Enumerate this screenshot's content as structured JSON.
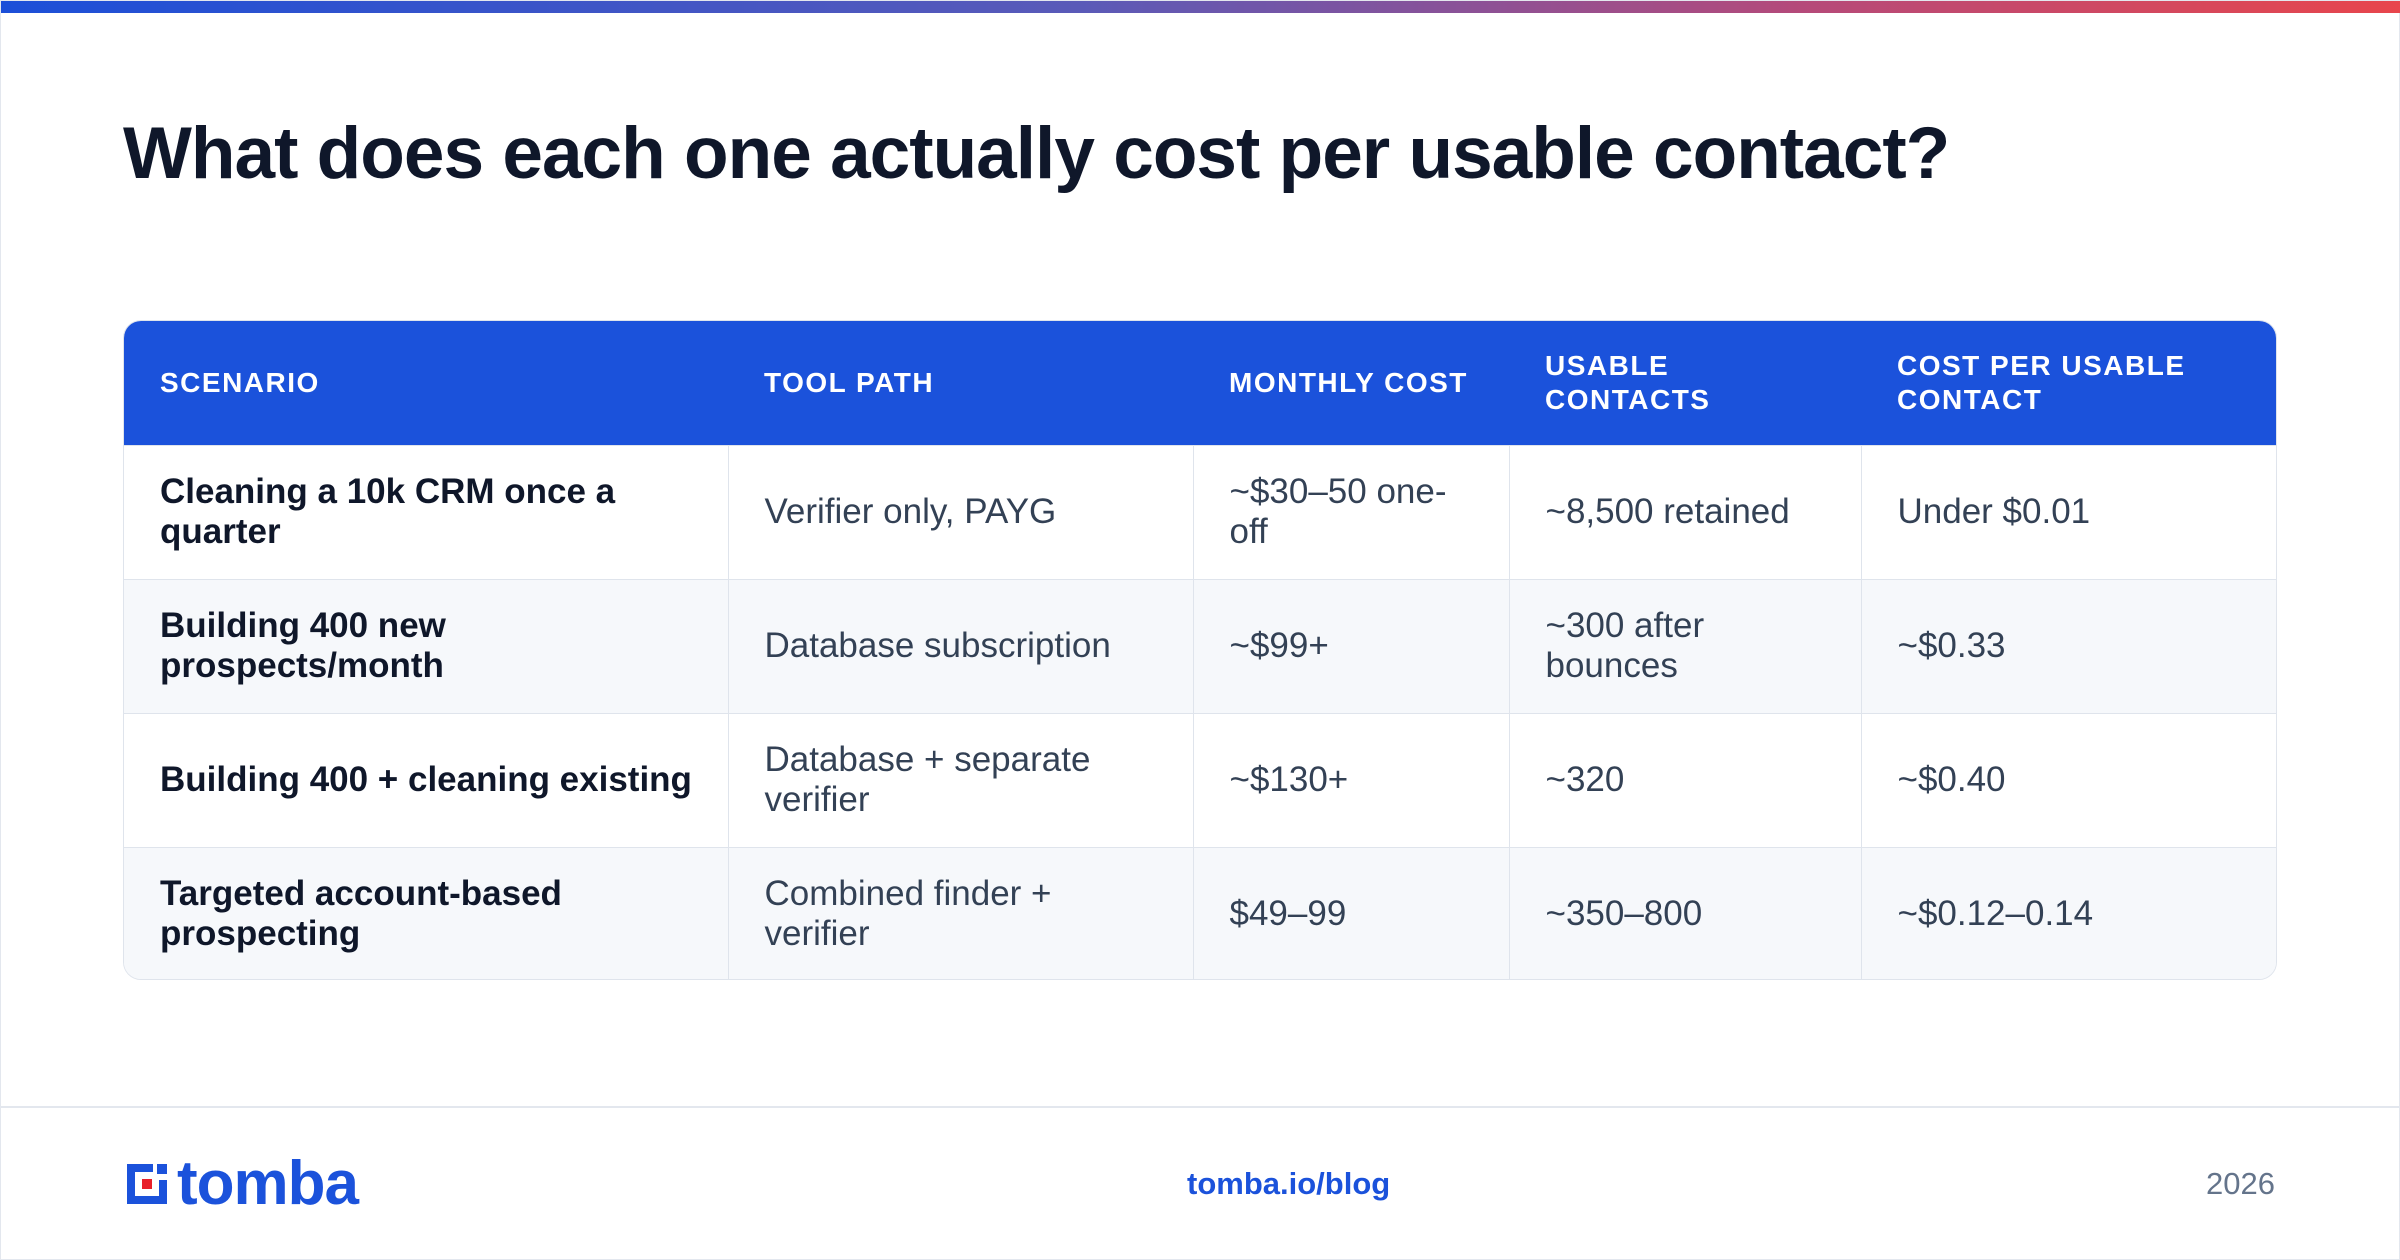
{
  "header": {
    "title": "What does each one actually cost per usable contact?"
  },
  "table": {
    "columns": [
      "SCENARIO",
      "TOOL PATH",
      "MONTHLY COST",
      "USABLE CONTACTS",
      "COST PER USABLE CONTACT"
    ],
    "rows": [
      [
        "Cleaning a 10k CRM once a quarter",
        "Verifier only, PAYG",
        "~$30–50 one-off",
        "~8,500 retained",
        "Under $0.01"
      ],
      [
        "Building 400 new prospects/month",
        "Database subscription",
        "~$99+",
        "~300 after bounces",
        "~$0.33"
      ],
      [
        "Building 400 + cleaning existing",
        "Database + separate verifier",
        "~$130+",
        "~320",
        "~$0.40"
      ],
      [
        "Targeted account-based prospecting",
        "Combined finder + verifier",
        "$49–99",
        "~350–800",
        "~$0.12–0.14"
      ]
    ]
  },
  "footer": {
    "brand": "tomba",
    "logo_icon": "tomba-logo-icon",
    "link": "tomba.io/blog",
    "year": "2026"
  },
  "colors": {
    "accent": "#1b52db",
    "title": "#0f172a",
    "text": "#334155",
    "muted": "#64748b",
    "logo_red": "#e8202a",
    "gradient_start": "#1c4fd8",
    "gradient_end": "#e8464c"
  }
}
